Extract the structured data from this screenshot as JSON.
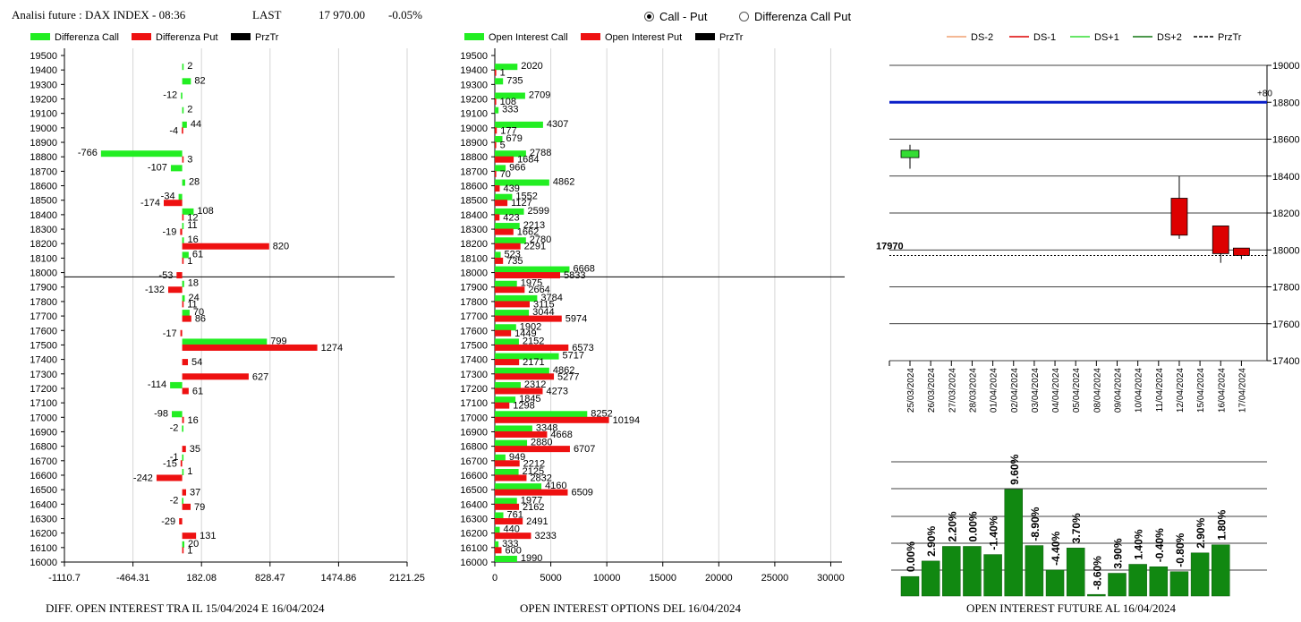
{
  "header": {
    "title": "Analisi future : DAX INDEX - 08:36",
    "last_label": "LAST",
    "last_value": "17 970.00",
    "change": "-0.05%"
  },
  "controls": {
    "radio_call_put": "Call - Put",
    "radio_diff": "Differenza Call Put",
    "selected": "call_put"
  },
  "footers": {
    "left": "DIFF. OPEN INTEREST TRA IL 15/04/2024 E 16/04/2024",
    "middle": "OPEN INTEREST OPTIONS DEL 16/04/2024",
    "right": "OPEN INTEREST FUTURE AL 16/04/2024"
  },
  "colors": {
    "call": "#22ee22",
    "put": "#ee1111",
    "price": "#000000",
    "level": "#0a1ec8",
    "oi_bar": "#118811",
    "ds_minus2": "#f0a070",
    "ds_minus1": "#dd0000",
    "ds_plus1": "#33dd33",
    "ds_plus2": "#117711"
  },
  "chart_data": [
    {
      "id": "diff",
      "type": "bar",
      "orientation": "horizontal",
      "legend": [
        "Differenza Call",
        "Differenza Put",
        "PrzTr"
      ],
      "strikes": [
        19500,
        19400,
        19300,
        19200,
        19100,
        19000,
        18900,
        18800,
        18700,
        18600,
        18500,
        18400,
        18300,
        18200,
        18100,
        18000,
        17900,
        17800,
        17700,
        17600,
        17500,
        17400,
        17300,
        17200,
        17100,
        17000,
        16900,
        16800,
        16700,
        16600,
        16500,
        16400,
        16300,
        16200,
        16100,
        16000
      ],
      "series": [
        {
          "name": "Differenza Call",
          "values": [
            null,
            2,
            82,
            -12,
            2,
            44,
            null,
            -766,
            -107,
            28,
            -34,
            108,
            11,
            16,
            61,
            null,
            18,
            24,
            70,
            null,
            799,
            null,
            null,
            -114,
            null,
            -98,
            -2,
            null,
            -1,
            1,
            null,
            -2,
            null,
            null,
            20,
            null
          ]
        },
        {
          "name": "Differenza Put",
          "values": [
            null,
            null,
            null,
            null,
            null,
            -4,
            null,
            3,
            null,
            null,
            -174,
            12,
            -19,
            820,
            1,
            -53,
            -132,
            11,
            86,
            -17,
            1274,
            54,
            627,
            61,
            null,
            16,
            null,
            35,
            -15,
            -242,
            37,
            79,
            -29,
            131,
            1,
            null
          ]
        }
      ],
      "price_level": 17970,
      "xticks": [
        "-1110.7",
        "-464.31",
        "182.08",
        "828.47",
        "1474.86",
        "2121.25"
      ],
      "xlim": [
        -1110.7,
        2121.25
      ]
    },
    {
      "id": "oi",
      "type": "bar",
      "orientation": "horizontal",
      "legend": [
        "Open Interest Call",
        "Open Interest Put",
        "PrzTr"
      ],
      "strikes": [
        19500,
        19400,
        19300,
        19200,
        19100,
        19000,
        18900,
        18800,
        18700,
        18600,
        18500,
        18400,
        18300,
        18200,
        18100,
        18000,
        17900,
        17800,
        17700,
        17600,
        17500,
        17400,
        17300,
        17200,
        17100,
        17000,
        16900,
        16800,
        16700,
        16600,
        16500,
        16400,
        16300,
        16200,
        16100,
        16000
      ],
      "series": [
        {
          "name": "Open Interest Call",
          "values": [
            null,
            2020,
            735,
            2709,
            333,
            4307,
            679,
            2788,
            966,
            4862,
            1552,
            2599,
            2213,
            2780,
            523,
            6668,
            1975,
            3784,
            3044,
            1902,
            2152,
            5717,
            4862,
            2312,
            1845,
            8252,
            3348,
            2880,
            949,
            2125,
            4160,
            1977,
            761,
            440,
            333,
            1990
          ]
        },
        {
          "name": "Open Interest Put",
          "values": [
            null,
            1,
            null,
            108,
            null,
            177,
            5,
            1684,
            70,
            439,
            1127,
            423,
            1662,
            2291,
            735,
            5833,
            2664,
            3115,
            5974,
            1449,
            6573,
            2171,
            5277,
            4273,
            1298,
            10194,
            4668,
            6707,
            2212,
            2832,
            6509,
            2162,
            2491,
            3233,
            600,
            null
          ]
        }
      ],
      "price_level": 17970,
      "xticks": [
        "0",
        "5000",
        "10000",
        "15000",
        "20000",
        "25000",
        "30000"
      ],
      "xlim": [
        0,
        31000
      ]
    },
    {
      "id": "future",
      "type": "candlestick",
      "legend": [
        "DS-2",
        "DS-1",
        "DS+1",
        "DS+2",
        "PrzTr"
      ],
      "x": [
        "25/03/2024",
        "26/03/2024",
        "27/03/2024",
        "28/03/2024",
        "01/04/2024",
        "02/04/2024",
        "03/04/2024",
        "04/04/2024",
        "05/04/2024",
        "08/04/2024",
        "09/04/2024",
        "10/04/2024",
        "11/04/2024",
        "12/04/2024",
        "15/04/2024",
        "16/04/2024",
        "17/04/2024"
      ],
      "candles": [
        {
          "x": "25/03/2024",
          "open": 18500,
          "close": 18540,
          "high": 18570,
          "low": 18440
        },
        {
          "x": "12/04/2024",
          "open": 18280,
          "close": 18080,
          "high": 18400,
          "low": 18060
        },
        {
          "x": "16/04/2024",
          "open": 18130,
          "close": 17980,
          "high": 18130,
          "low": 17930
        },
        {
          "x": "17/04/2024",
          "open": 18010,
          "close": 17970,
          "high": 18010,
          "low": 17950
        }
      ],
      "level": 18800,
      "level_label": "+80",
      "price_label": "17970",
      "price_level": 17970,
      "ylim": [
        17400,
        19000
      ],
      "yticks": [
        "19000",
        "18800",
        "18600",
        "18400",
        "18200",
        "18000",
        "17800",
        "17600",
        "17400"
      ]
    },
    {
      "id": "oi_future",
      "type": "bar",
      "values": [
        0.0,
        2.9,
        2.2,
        0.0,
        -1.4,
        9.6,
        -8.9,
        -4.4,
        3.7,
        -8.6,
        3.9,
        1.4,
        -0.4,
        -0.8,
        2.9,
        1.8
      ],
      "labels": [
        "0.00%",
        "2.90%",
        "2.20%",
        "0.00%",
        "-1.40%",
        "9.60%",
        "-8.90%",
        "-4.40%",
        "3.70%",
        "-8.60%",
        "3.90%",
        "1.40%",
        "-0.40%",
        "-0.80%",
        "2.90%",
        "1.80%"
      ],
      "heights": [
        0.24,
        0.43,
        0.61,
        0.61,
        0.51,
        1.31,
        0.62,
        0.32,
        0.59,
        0.02,
        0.28,
        0.39,
        0.36,
        0.3,
        0.53,
        0.63
      ]
    }
  ]
}
